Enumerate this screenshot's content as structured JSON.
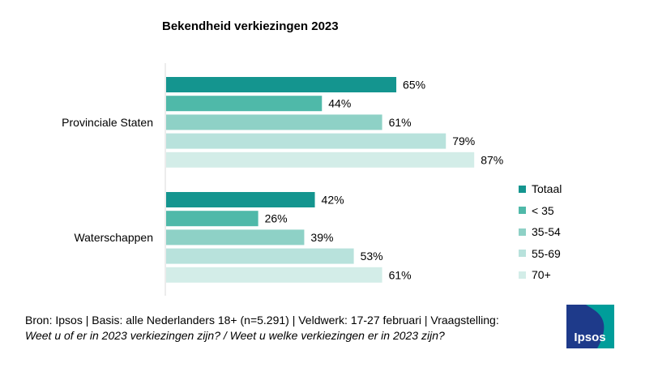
{
  "chart_data": {
    "type": "bar",
    "orientation": "horizontal",
    "title": "Bekendheid verkiezingen 2023",
    "categories": [
      "Provinciale Staten",
      "Waterschappen"
    ],
    "series": [
      {
        "name": "Totaal",
        "color": "#14958F",
        "values": [
          65,
          42
        ]
      },
      {
        "name": "< 35",
        "color": "#4FB9A9",
        "values": [
          44,
          26
        ]
      },
      {
        "name": "35-54",
        "color": "#8ED1C6",
        "values": [
          61,
          39
        ]
      },
      {
        "name": "55-69",
        "color": "#B8E2DC",
        "values": [
          79,
          53
        ]
      },
      {
        "name": "70+",
        "color": "#D3EDE8",
        "values": [
          87,
          61
        ]
      }
    ],
    "value_suffix": "%",
    "xlim": [
      0,
      100
    ],
    "legend_position": "right",
    "grid": false
  },
  "footer": {
    "source": "Bron: Ipsos | Basis: alle Nederlanders 18+ (n=5.291) | Veldwerk: 17-27 februari | Vraagstelling:",
    "question": "Weet u of er in 2023 verkiezingen zijn? / Weet u welke verkiezingen er in 2023 zijn?"
  },
  "logo": {
    "text": "Ipsos",
    "colors": [
      "#1E3A8A",
      "#009D9A"
    ]
  }
}
